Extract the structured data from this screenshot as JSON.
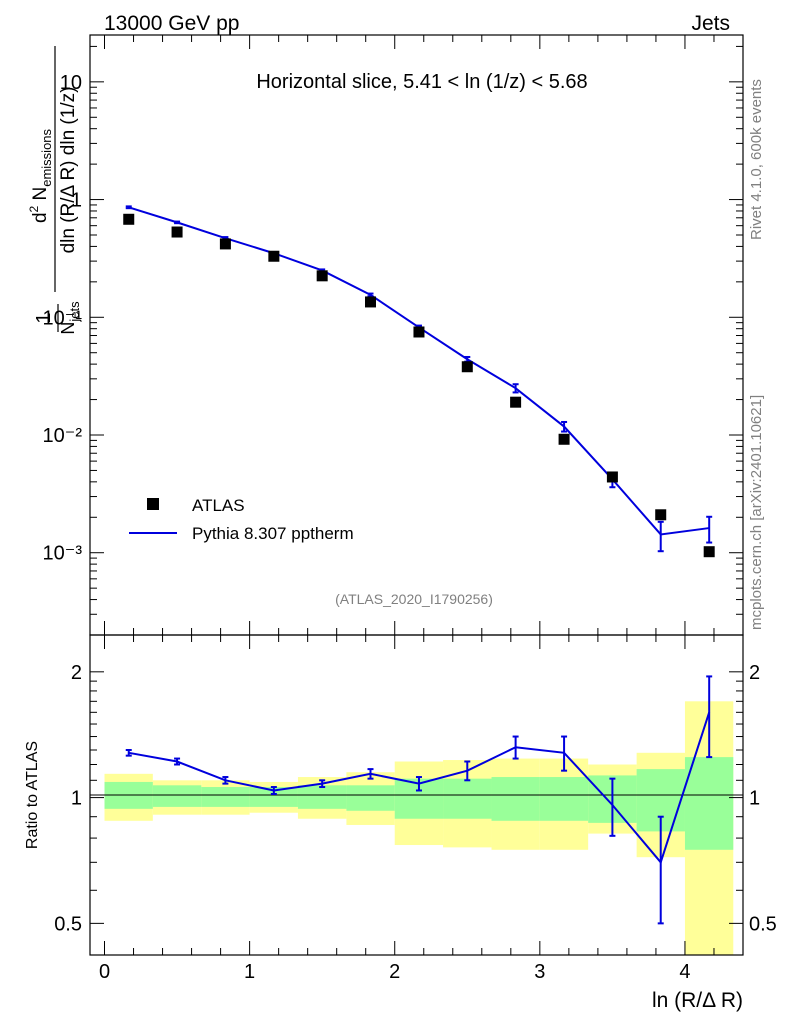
{
  "header": {
    "left": "13000 GeV pp",
    "right": "Jets"
  },
  "side_labels": {
    "rivet": "Rivet 4.1.0,  600k events",
    "mcplots": "mcplots.cern.ch [arXiv:2401.10621]"
  },
  "ylabel_main": "1/N_jets d²N_emissions / dln(R/ΔR) dln(1/z)",
  "ratio_ylabel": "Ratio to ATLAS",
  "colors": {
    "data": "#000000",
    "mc": "#0000dd",
    "band_inner": "#99ff99",
    "band_outer": "#ffff99"
  },
  "chart_data": [
    {
      "type": "scatter",
      "title": "Horizontal slice, 5.41 < ln (1/z) < 5.68",
      "watermark": "(ATLAS_2020_I1790256)",
      "xlabel": "ln (R/Δ R)",
      "yscale": "log",
      "xlim": [
        -0.1,
        4.4
      ],
      "ylim": [
        0.0002,
        25
      ],
      "ytick_labels": [
        "10⁻³",
        "10⁻²",
        "10⁻¹",
        "1",
        "10"
      ],
      "legend": {
        "position": "bottom-left",
        "entries": [
          "ATLAS",
          "Pythia 8.307 pptherm"
        ]
      },
      "x": [
        0.167,
        0.5,
        0.833,
        1.167,
        1.5,
        1.833,
        2.167,
        2.5,
        2.833,
        3.167,
        3.5,
        3.833,
        4.167
      ],
      "series": [
        {
          "name": "ATLAS",
          "values": [
            0.68,
            0.53,
            0.42,
            0.33,
            0.225,
            0.135,
            0.075,
            0.038,
            0.019,
            0.0092,
            0.0044,
            0.0021,
            0.00102
          ]
        },
        {
          "name": "Pythia 8.307 pptherm",
          "values": [
            0.86,
            0.64,
            0.47,
            0.35,
            0.25,
            0.155,
            0.082,
            0.044,
            0.025,
            0.0118,
            0.0042,
            0.00143,
            0.00162
          ],
          "err_up": [
            0.015,
            0.01,
            0.01,
            0.006,
            0.005,
            0.004,
            0.003,
            0.002,
            0.002,
            0.0011,
            0.0006,
            0.0004,
            0.0004
          ],
          "err_down": [
            0.015,
            0.01,
            0.01,
            0.006,
            0.005,
            0.004,
            0.003,
            0.002,
            0.002,
            0.0011,
            0.0006,
            0.0004,
            0.0004
          ]
        }
      ]
    },
    {
      "type": "line",
      "title": "Ratio to ATLAS",
      "xlabel": "ln (R/Δ R)",
      "yscale": "log",
      "ylim": [
        0.42,
        2.45
      ],
      "x_ticks": [
        0,
        1,
        2,
        3,
        4
      ],
      "y_ticks": [
        0.5,
        1,
        2
      ],
      "x": [
        0.167,
        0.5,
        0.833,
        1.167,
        1.5,
        1.833,
        2.167,
        2.5,
        2.833,
        3.167,
        3.5,
        3.833,
        4.167
      ],
      "ratio": [
        1.28,
        1.22,
        1.1,
        1.04,
        1.08,
        1.14,
        1.08,
        1.16,
        1.32,
        1.28,
        0.96,
        0.7,
        1.6
      ],
      "ratio_err": [
        0.02,
        0.02,
        0.02,
        0.02,
        0.02,
        0.03,
        0.04,
        0.06,
        0.08,
        0.12,
        0.15,
        0.2,
        0.35
      ],
      "bands": {
        "edges": [
          0,
          0.333,
          0.667,
          1.0,
          1.333,
          1.667,
          2.0,
          2.333,
          2.667,
          3.0,
          3.333,
          3.667,
          4.0,
          4.333
        ],
        "inner_low": [
          0.94,
          0.95,
          0.95,
          0.95,
          0.94,
          0.93,
          0.89,
          0.89,
          0.88,
          0.88,
          0.87,
          0.83,
          0.75
        ],
        "inner_high": [
          1.09,
          1.07,
          1.06,
          1.06,
          1.07,
          1.07,
          1.11,
          1.11,
          1.12,
          1.12,
          1.13,
          1.17,
          1.25
        ],
        "outer_low": [
          0.88,
          0.91,
          0.91,
          0.92,
          0.89,
          0.86,
          0.77,
          0.76,
          0.75,
          0.75,
          0.82,
          0.72,
          0.38
        ],
        "outer_high": [
          1.14,
          1.1,
          1.1,
          1.09,
          1.12,
          1.15,
          1.22,
          1.23,
          1.24,
          1.24,
          1.2,
          1.28,
          1.7
        ]
      }
    }
  ]
}
